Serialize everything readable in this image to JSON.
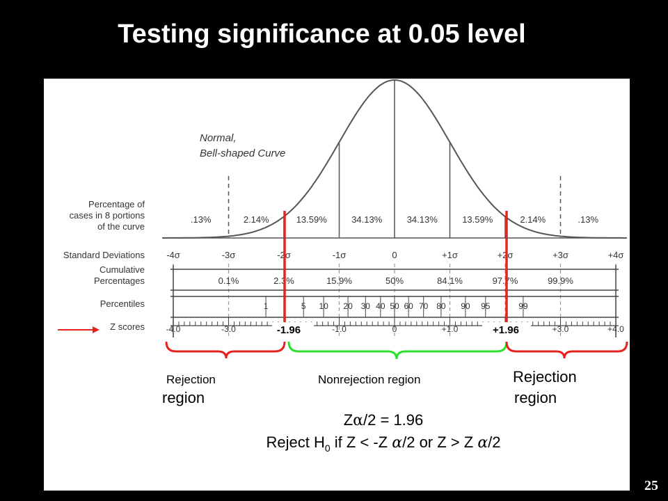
{
  "title": "Testing significance at 0.05 level",
  "slide_number": "25",
  "curve_label": {
    "line1": "Normal,",
    "line2": "Bell-shaped Curve"
  },
  "row_labels": {
    "pct_line1": "Percentage of",
    "pct_line2": "cases in 8 portions",
    "pct_line3": "of the curve",
    "sd": "Standard Deviations",
    "cum_line1": "Cumulative",
    "cum_line2": "Percentages",
    "percentiles": "Percentiles",
    "zscores": "Z scores"
  },
  "portion_percentages": [
    ".13%",
    "2.14%",
    "13.59%",
    "34.13%",
    "34.13%",
    "13.59%",
    "2.14%",
    ".13%"
  ],
  "sd_labels": [
    "-4σ",
    "-3σ",
    "-2σ",
    "-1σ",
    "0",
    "+1σ",
    "+2σ",
    "+3σ",
    "+4σ"
  ],
  "cumulative_percentages": [
    "0.1%",
    "2.3%",
    "15.9%",
    "50%",
    "84.1%",
    "97.7%",
    "99.9%"
  ],
  "percentile_labels": [
    "1",
    "5",
    "10",
    "20",
    "30",
    "40",
    "50",
    "60",
    "70",
    "80",
    "90",
    "95",
    "99"
  ],
  "z_labels": [
    "-4.0",
    "-3.0",
    "-1.0",
    "0",
    "+1.0",
    "+3.0",
    "+4.0"
  ],
  "critical": {
    "left": "-1.96",
    "right": "+1.96"
  },
  "regions": {
    "left_rejection_line1": "Rejection",
    "left_rejection_line2": "region",
    "nonrejection": "Nonrejection region",
    "right_rejection_line1": "Rejection",
    "right_rejection_line2": "region"
  },
  "formula_line1": {
    "a": "Z",
    "alpha": "α",
    "b": "/2 = 1.96"
  },
  "formula_line2": {
    "a": "Reject H",
    "sub": "0",
    "b": " if Z < -Z ",
    "alpha1": "α",
    "c": "/2 or Z > Z ",
    "alpha2": "α",
    "d": "/2"
  },
  "colors": {
    "rejection": "#e8231f",
    "nonrejection": "#2ce02c",
    "curve": "#555555"
  }
}
